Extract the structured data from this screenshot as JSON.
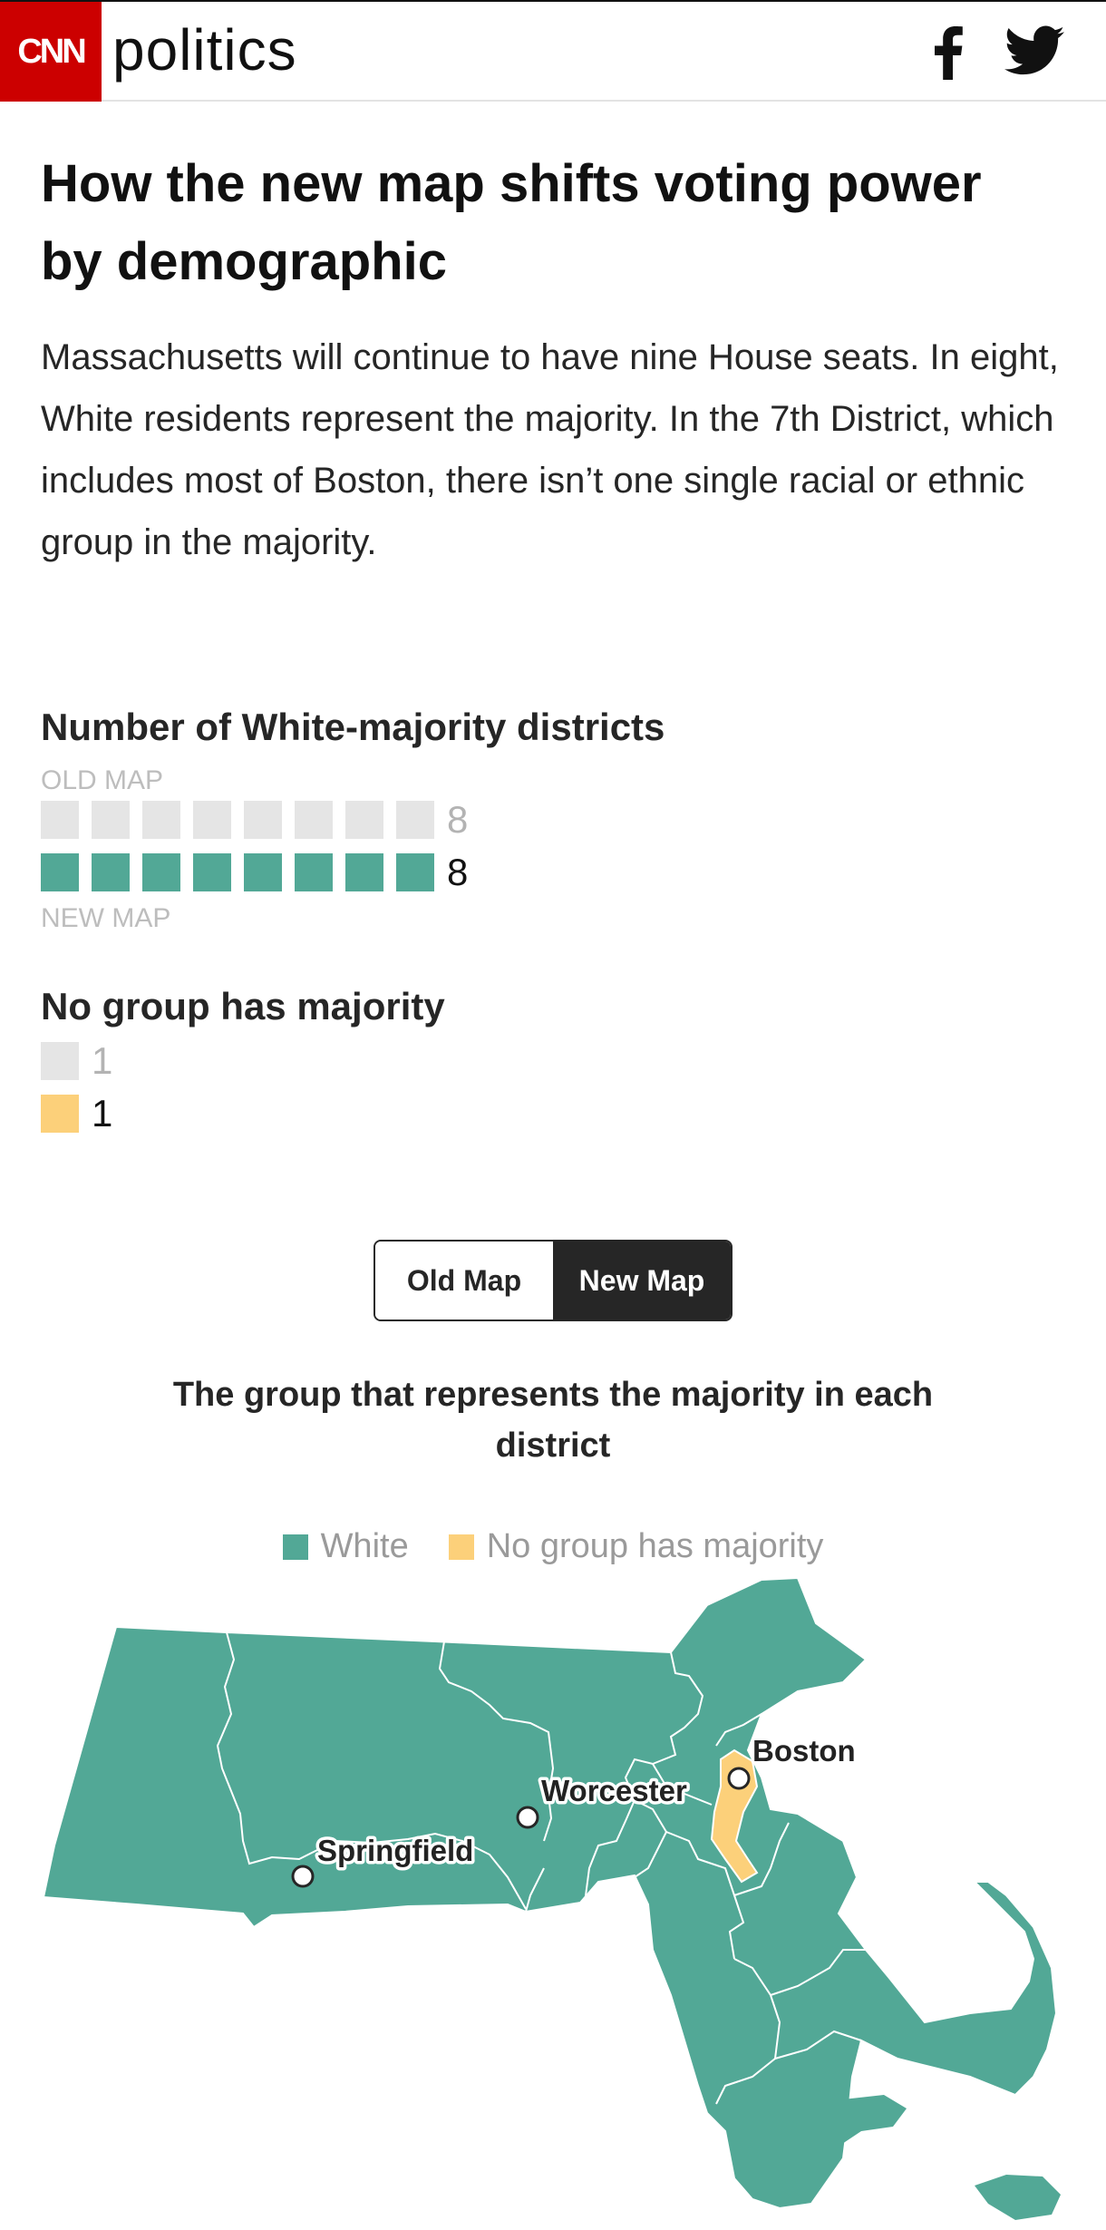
{
  "header": {
    "logo_text": "CNN",
    "section_name": "politics",
    "brand_color": "#cc0000",
    "social_icons": [
      "facebook-icon",
      "twitter-icon"
    ]
  },
  "article": {
    "headline": "How the new map shifts voting power by demographic",
    "dek": "Massachusetts will continue to have nine House seats. In eight, White residents represent the majority. In the 7th District, which includes most of Boston, there isn’t one single racial or ethnic group in the majority."
  },
  "charts": {
    "white_majority": {
      "title": "Number of White-majority districts",
      "old_label": "OLD MAP",
      "new_label": "NEW MAP",
      "old_count": 8,
      "new_count": 8,
      "old_value_text": "8",
      "new_value_text": "8"
    },
    "no_group": {
      "title": "No group has majority",
      "old_count": 1,
      "new_count": 1,
      "old_value_text": "1",
      "new_value_text": "1"
    }
  },
  "toggle": {
    "old_label": "Old Map",
    "new_label": "New Map",
    "selected": "New Map"
  },
  "map": {
    "title": "The group that represents the majority in each district",
    "legend": [
      {
        "label": "White",
        "color": "#52a896"
      },
      {
        "label": "No group has majority",
        "color": "#fcd07a"
      }
    ],
    "cities": [
      "Boston",
      "Worcester",
      "Springfield"
    ],
    "colors": {
      "white": "#52a896",
      "no_group": "#fcd07a",
      "old": "#e5e5e5"
    }
  }
}
